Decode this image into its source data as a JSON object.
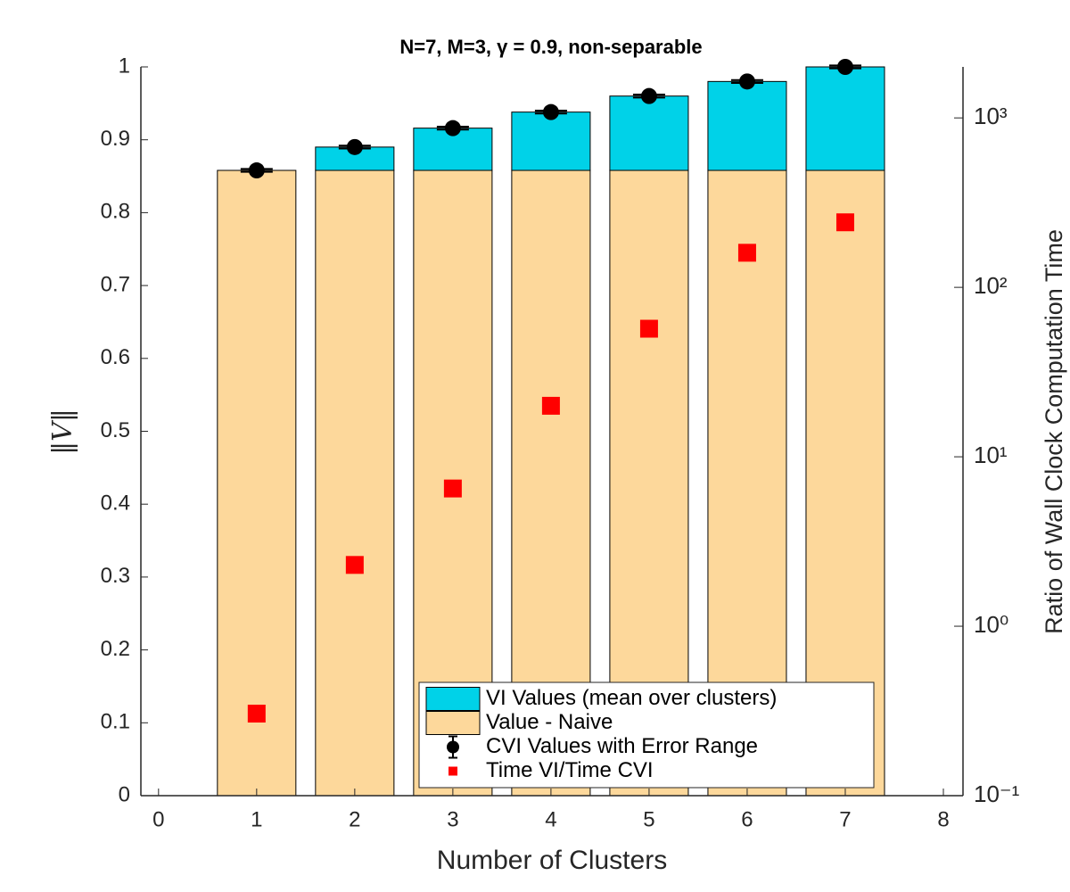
{
  "chart_data": {
    "type": "bar",
    "title": "N=7, M=3, γ = 0.9, non-separable",
    "xlabel": "Number of Clusters",
    "ylabel": "‖V‖",
    "y2label": "Ratio of Wall Clock Computation Time",
    "x": [
      1,
      2,
      3,
      4,
      5,
      6,
      7
    ],
    "xlim": [
      -0.18,
      8.2
    ],
    "xticks": [
      0,
      1,
      2,
      3,
      4,
      5,
      6,
      7,
      8
    ],
    "ylim": [
      0,
      1
    ],
    "yticks": [
      0,
      0.1,
      0.2,
      0.3,
      0.4,
      0.5,
      0.6,
      0.7,
      0.8,
      0.9,
      1
    ],
    "y2lim": [
      0.1,
      2000
    ],
    "y2scale": "log",
    "y2ticks": [
      {
        "value": 0.1,
        "label": "10⁻¹"
      },
      {
        "value": 1,
        "label": "10⁰"
      },
      {
        "value": 10,
        "label": "10¹"
      },
      {
        "value": 100,
        "label": "10²"
      },
      {
        "value": 1000,
        "label": "10³"
      }
    ],
    "legend": "lower right",
    "series": [
      {
        "name": "VI Values (mean over clusters)",
        "type": "bar",
        "color": "#00d2e8",
        "values": [
          0,
          0.032,
          0.058,
          0.08,
          0.102,
          0.122,
          0.142
        ]
      },
      {
        "name": "Value - Naive",
        "type": "bar",
        "color": "#fdd89b",
        "values": [
          0.858,
          0.858,
          0.858,
          0.858,
          0.858,
          0.858,
          0.858
        ]
      },
      {
        "name": "CVI Values with Error Range",
        "type": "errorbar",
        "color": "#000000",
        "values": [
          0.858,
          0.89,
          0.916,
          0.938,
          0.96,
          0.98,
          1.0
        ],
        "errors": [
          0.002,
          0.002,
          0.002,
          0.002,
          0.002,
          0.002,
          0.002
        ]
      },
      {
        "name": "Time VI/Time CVI",
        "type": "scatter",
        "axis": "y2",
        "color": "#ff0000",
        "values": [
          0.305,
          2.3,
          6.5,
          20,
          57,
          160,
          242
        ]
      }
    ]
  }
}
